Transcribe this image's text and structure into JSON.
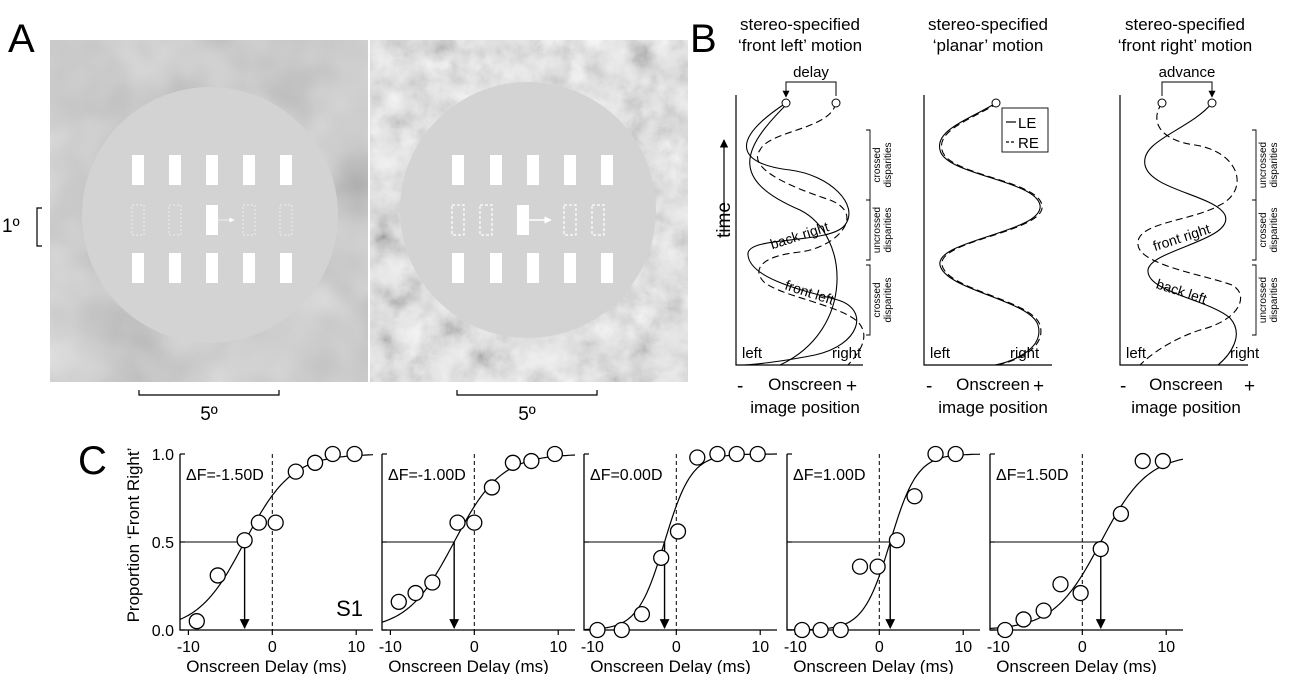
{
  "panel_labels": {
    "a": "A",
    "b": "B",
    "c": "C"
  },
  "panel_a": {
    "scale_vertical": "1º",
    "scale_horizontal_left": "5º",
    "scale_horizontal_right": "5º"
  },
  "panel_b": {
    "time_label": "time",
    "axis_minus": "-",
    "axis_plus": "+",
    "axis_label_line1": "Onscreen",
    "axis_label_line2": "image position",
    "left_label": "left",
    "right_label": "right",
    "legend": {
      "le": "LE",
      "re": "RE"
    },
    "subpanels": [
      {
        "title_line1": "stereo-specified",
        "title_line2": "‘front left’ motion",
        "marker": "delay",
        "phase_labels": [
          "back right",
          "front left"
        ],
        "brackets": [
          [
            "crossed",
            "disparities"
          ],
          [
            "uncrossed",
            "disparities"
          ],
          [
            "crossed",
            "disparities"
          ]
        ]
      },
      {
        "title_line1": "stereo-specified",
        "title_line2": "‘planar’ motion",
        "marker": "",
        "phase_labels": [],
        "brackets": []
      },
      {
        "title_line1": "stereo-specified",
        "title_line2": "‘front right’ motion",
        "marker": "advance",
        "phase_labels": [
          "front right",
          "back left"
        ],
        "brackets": [
          [
            "uncrossed",
            "disparities"
          ],
          [
            "crossed",
            "disparities"
          ],
          [
            "uncrossed",
            "disparities"
          ]
        ]
      }
    ]
  },
  "chart_data": [
    {
      "type": "scatter",
      "title": "ΔF=-1.50D",
      "subject_label": "S1",
      "xlabel": "Onscreen Delay (ms)",
      "ylabel": "Proportion ‘Front Right’",
      "xlim": [
        -11,
        12
      ],
      "ylim": [
        0,
        1
      ],
      "xticks": [
        -10,
        0,
        10
      ],
      "xtick_labels": [
        "-10",
        "0",
        "10"
      ],
      "yticks": [
        0,
        0.5,
        1
      ],
      "ytick_labels": [
        "0.0",
        "0.5",
        "1.0"
      ],
      "x": [
        -9,
        -6.5,
        -3.3,
        -1.6,
        0.4,
        2.8,
        5.1,
        7.2,
        9.8
      ],
      "y": [
        0.05,
        0.31,
        0.51,
        0.61,
        0.61,
        0.9,
        0.95,
        1.0,
        1.0
      ],
      "pse": -3.3
    },
    {
      "type": "scatter",
      "title": "ΔF=-1.00D",
      "xlabel": "Onscreen Delay (ms)",
      "xlim": [
        -11,
        12
      ],
      "ylim": [
        0,
        1
      ],
      "xticks": [
        -10,
        0,
        10
      ],
      "xtick_labels": [
        "-10",
        "0",
        "10"
      ],
      "x": [
        -9,
        -7,
        -5,
        -2,
        0,
        2.1,
        4.6,
        6.8,
        9.6
      ],
      "y": [
        0.16,
        0.21,
        0.27,
        0.61,
        0.61,
        0.81,
        0.95,
        0.96,
        1.0
      ],
      "pse": -2.4
    },
    {
      "type": "scatter",
      "title": "ΔF=0.00D",
      "xlabel": "Onscreen Delay (ms)",
      "xlim": [
        -11,
        12
      ],
      "ylim": [
        0,
        1
      ],
      "xticks": [
        -10,
        0,
        10
      ],
      "xtick_labels": [
        "-10",
        "0",
        "10"
      ],
      "x": [
        -9.4,
        -6.5,
        -4.1,
        -1.8,
        0.2,
        2.5,
        4.9,
        7.2,
        9.7
      ],
      "y": [
        0.0,
        0.0,
        0.09,
        0.41,
        0.56,
        0.98,
        1.0,
        1.0,
        1.0
      ],
      "pse": -1.4
    },
    {
      "type": "scatter",
      "title": "ΔF=1.00D",
      "xlabel": "Onscreen Delay (ms)",
      "xlim": [
        -11,
        12
      ],
      "ylim": [
        0,
        1
      ],
      "xticks": [
        -10,
        0,
        10
      ],
      "xtick_labels": [
        "-10",
        "0",
        "10"
      ],
      "x": [
        -9.2,
        -7,
        -4.6,
        -2.3,
        -0.2,
        2.1,
        4.2,
        6.7,
        9.1
      ],
      "y": [
        0.0,
        0.0,
        0.0,
        0.36,
        0.36,
        0.51,
        0.76,
        1.0,
        1.0
      ],
      "pse": 1.3
    },
    {
      "type": "scatter",
      "title": "ΔF=1.50D",
      "xlabel": "Onscreen Delay (ms)",
      "xlim": [
        -11,
        12
      ],
      "ylim": [
        0,
        1
      ],
      "xticks": [
        -10,
        0,
        10
      ],
      "xtick_labels": [
        "-10",
        "0",
        "10"
      ],
      "x": [
        -9.2,
        -7,
        -4.6,
        -2.6,
        -0.2,
        2.2,
        4.6,
        7.2,
        9.6
      ],
      "y": [
        0.0,
        0.06,
        0.11,
        0.26,
        0.21,
        0.46,
        0.66,
        0.96,
        0.96
      ],
      "pse": 2.2
    }
  ]
}
